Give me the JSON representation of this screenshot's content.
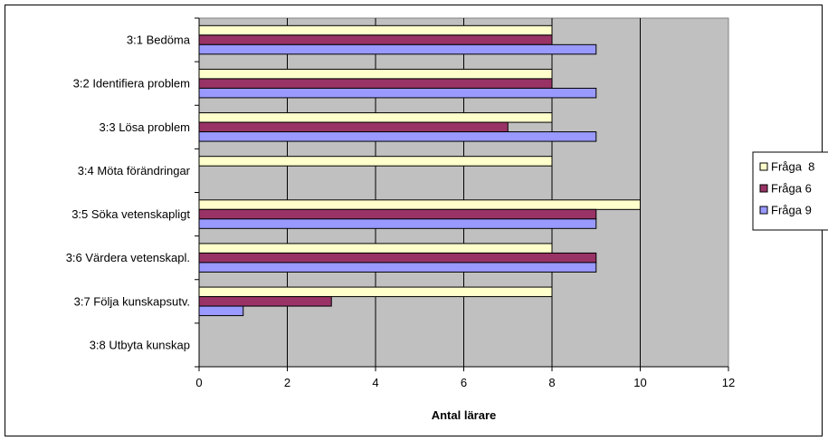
{
  "chart_data": {
    "type": "bar",
    "orientation": "horizontal",
    "categories": [
      "3:1 Bedöma",
      "3:2 Identifiera problem",
      "3:3 Lösa problem",
      "3:4 Möta förändringar",
      "3:5 Söka vetenskapligt",
      "3:6 Värdera vetenskapl.",
      "3:7 Följa kunskapsutv.",
      "3:8 Utbyta kunskap"
    ],
    "series": [
      {
        "name": "Fråga  8",
        "color": "#FFFFCC",
        "values": [
          8,
          8,
          8,
          8,
          10,
          8,
          8,
          0
        ]
      },
      {
        "name": "Fråga 6",
        "color": "#993366",
        "values": [
          8,
          8,
          7,
          0,
          9,
          9,
          3,
          0
        ]
      },
      {
        "name": "Fråga 9",
        "color": "#9999FF",
        "values": [
          9,
          9,
          9,
          0,
          9,
          9,
          1,
          0
        ]
      }
    ],
    "xlabel": "Antal lärare",
    "xlim": [
      0,
      12
    ],
    "xticks": [
      "0",
      "2",
      "4",
      "6",
      "8",
      "10",
      "12"
    ],
    "grid": true,
    "plot_background": "#C0C0C0",
    "legend_position": "right"
  }
}
